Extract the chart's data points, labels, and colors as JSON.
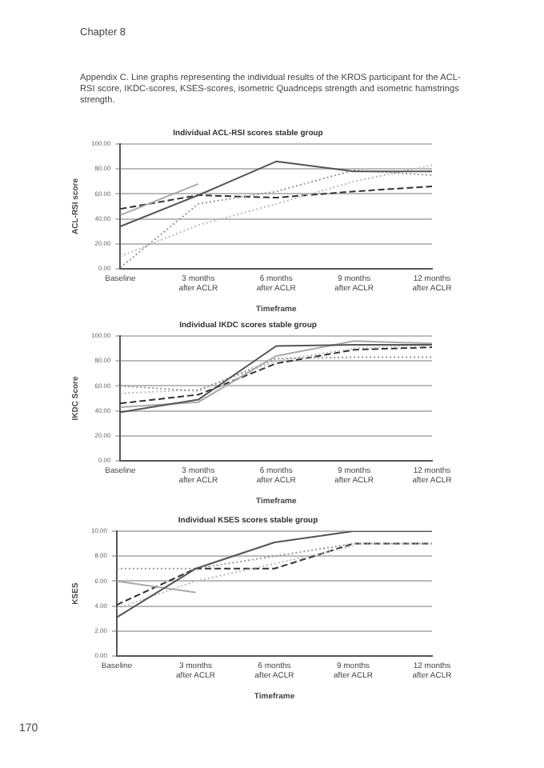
{
  "chart_data": [
    {
      "type": "line",
      "title": "Individual ACL-RSI scores stable group",
      "xlabel": "Timeframe",
      "ylabel": "ACL-RSI score",
      "annotations": [
        "Chapter 8",
        "Appendix C. Line graphs representing the individual results of the KROS participant for the ACL-RSI score, IKDC-scores, KSES-scores, isometric Quadriceps strength and isometric hamstrings strength."
      ],
      "categories": [
        "Baseline",
        "3 months after ACLR",
        "6 months after ACLR",
        "9 months after ACLR",
        "12 months after ACLR"
      ],
      "series": [
        {
          "color": "#555555",
          "line_style": "solid",
          "values": [
            34,
            59,
            86,
            78,
            78
          ]
        },
        {
          "color": "#aaaaaa",
          "line_style": "solid",
          "values": [
            43,
            68,
            null,
            null,
            null
          ]
        },
        {
          "color": "#999999",
          "line_style": "dotted",
          "values": [
            1,
            52,
            62,
            79,
            75
          ]
        },
        {
          "color": "#bbbbbb",
          "line_style": "dotted",
          "values": [
            10,
            35,
            52,
            70,
            83
          ]
        },
        {
          "color": "#333333",
          "line_style": "dashed",
          "values": [
            48,
            59,
            57,
            62,
            66
          ]
        }
      ],
      "ylim": [
        0,
        100
      ],
      "yticks": [
        {
          "value": 0,
          "label": "0.00"
        },
        {
          "value": 20,
          "label": "20.00"
        },
        {
          "value": 40,
          "label": "40.00"
        },
        {
          "value": 60,
          "label": "60.00"
        },
        {
          "value": 80,
          "label": "80.00"
        },
        {
          "value": 100,
          "label": "100.00"
        }
      ],
      "grid": "y",
      "marker": "none"
    },
    {
      "type": "line",
      "title": "Individual IKDC scores stable group",
      "xlabel": "Timeframe",
      "ylabel": "IKDC Score",
      "categories": [
        "Baseline",
        "3 months after ACLR",
        "6 months after ACLR",
        "9 months after ACLR",
        "12 months after ACLR"
      ],
      "series": [
        {
          "color": "#555555",
          "line_style": "solid",
          "values": [
            39,
            49,
            92,
            93,
            93
          ]
        },
        {
          "color": "#aaaaaa",
          "line_style": "solid",
          "values": [
            43,
            47,
            84,
            96,
            94
          ]
        },
        {
          "color": "#999999",
          "line_style": "dotted",
          "values": [
            60,
            56,
            82,
            83,
            83
          ]
        },
        {
          "color": "#bbbbbb",
          "line_style": "dotted",
          "values": [
            54,
            57,
            80,
            90,
            93
          ]
        },
        {
          "color": "#333333",
          "line_style": "dashed",
          "values": [
            46,
            53,
            78,
            89,
            91
          ]
        }
      ],
      "ylim": [
        0,
        100
      ],
      "yticks": [
        {
          "value": 0,
          "label": "0.00"
        },
        {
          "value": 20,
          "label": "20.00"
        },
        {
          "value": 40,
          "label": "40.00"
        },
        {
          "value": 60,
          "label": "60.00"
        },
        {
          "value": 80,
          "label": "80.00"
        },
        {
          "value": 100,
          "label": "100.00"
        }
      ],
      "grid": "y",
      "marker": "none"
    },
    {
      "type": "line",
      "title": "Individual KSES scores stable group",
      "xlabel": "Timeframe",
      "ylabel": "KSES",
      "annotations": [
        "170"
      ],
      "categories": [
        "Baseline",
        "3 months after ACLR",
        "6 months after ACLR",
        "9 months after ACLR",
        "12 months after ACLR"
      ],
      "series": [
        {
          "color": "#555555",
          "line_style": "solid",
          "values": [
            3.1,
            7.0,
            9.1,
            10,
            10
          ]
        },
        {
          "color": "#aaaaaa",
          "line_style": "solid",
          "values": [
            6.0,
            5.1,
            null,
            null,
            null
          ]
        },
        {
          "color": "#999999",
          "line_style": "dotted",
          "values": [
            7.0,
            7.0,
            8.0,
            9.0,
            9.0
          ]
        },
        {
          "color": "#bbbbbb",
          "line_style": "dotted",
          "values": [
            3.8,
            6.0,
            7.4,
            8.8,
            null
          ]
        },
        {
          "color": "#333333",
          "line_style": "dashed",
          "values": [
            4.1,
            7.0,
            7.0,
            9.0,
            9.0
          ]
        }
      ],
      "ylim": [
        0,
        10
      ],
      "yticks": [
        {
          "value": 0,
          "label": "0.00"
        },
        {
          "value": 2,
          "label": "2.00"
        },
        {
          "value": 4,
          "label": "4.00"
        },
        {
          "value": 6,
          "label": "6.00"
        },
        {
          "value": 8,
          "label": "8.00"
        },
        {
          "value": 10,
          "label": "10.00"
        }
      ],
      "grid": "y",
      "marker": "none"
    }
  ]
}
